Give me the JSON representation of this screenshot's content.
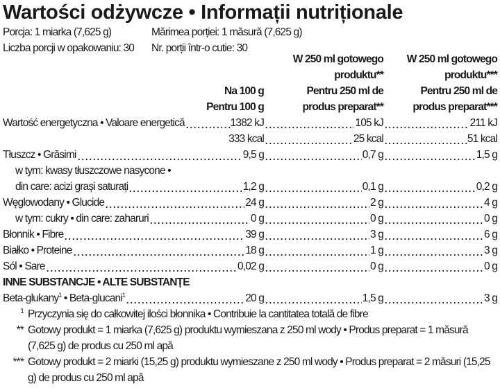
{
  "title": "Wartości odżywcze • Informații nutriționale",
  "serving": {
    "pl_size": "Porcja: 1 miarka (7,625 g)",
    "ro_size": "Mărimea porției: 1 măsură (7,625 g)",
    "pl_count": "Liczba porcji w opakowaniu: 30",
    "ro_count": "Nr. porții într-o cutie: 30"
  },
  "columns": {
    "col1": [
      "Na 100 g",
      "Pentru 100 g"
    ],
    "col2": [
      "W 250 ml gotowego",
      "produktu**",
      "Pentru 250 ml de",
      "produs preparat**"
    ],
    "col3": [
      "W 250 ml gotowego",
      "produktu***",
      "Pentru 250 ml de",
      "produs preparat***"
    ]
  },
  "rows": [
    {
      "label": "Wartość energetyczna • Valoare energetică",
      "v1": "1382 kJ",
      "v2": "105 kJ",
      "v3": "211 kJ"
    },
    {
      "label": "",
      "v1": "333 kcal",
      "v2": "25 kcal",
      "v3": "51 kcal"
    },
    {
      "label": "Tłuszcz • Grăsimi",
      "v1": "9,5 g",
      "v2": "0,7 g",
      "v3": "1,5 g"
    },
    {
      "label": "w tym: kwasy tłuszczowe nasycone •"
    },
    {
      "label": "din care: acizi grași saturați",
      "v1": "1,2 g",
      "v2": "0,1 g",
      "v3": "0,2 g"
    },
    {
      "label": "Węglowodany • Glucide",
      "v1": "24 g",
      "v2": "2 g",
      "v3": "4 g"
    },
    {
      "label": "w tym: cukry • din care: zaharuri",
      "v1": "0 g",
      "v2": "0 g",
      "v3": "0 g"
    },
    {
      "label": "Błonnik • Fibre",
      "v1": "39 g",
      "v2": "3 g",
      "v3": "6 g"
    },
    {
      "label": "Białko • Proteine",
      "v1": "18 g",
      "v2": "1 g",
      "v3": "3 g"
    },
    {
      "label": "Sól • Sare",
      "v1": "0,02 g",
      "v2": "0 g",
      "v3": "0 g"
    }
  ],
  "other": {
    "heading": "INNE SUBSTANCJE • ALTE SUBSTANȚE",
    "label_pl": "Beta-glukany",
    "label_sep": " • Beta-glucani",
    "sup": "1",
    "v1": "20 g",
    "v2": "1,5 g",
    "v3": "3 g"
  },
  "footnotes": [
    {
      "mark": "1",
      "text": "Przyczynia się do całkowitej ilości błonnika • Contribuie la cantitatea totală de fibre"
    },
    {
      "mark": "**",
      "text": "Gotowy produkt = 1 miarka (7,625 g) produktu wymieszana z 250 ml wody • Produs preparat = 1 măsură (7,625 g) de produs cu 250 ml apă"
    },
    {
      "mark": "***",
      "text": "Gotowy produkt = 2 miarki (15,25 g) produktu wymieszane z 250 ml wody • Produs preparat = 2 măsuri (15,25 g) de produs cu 250 ml apă"
    }
  ]
}
